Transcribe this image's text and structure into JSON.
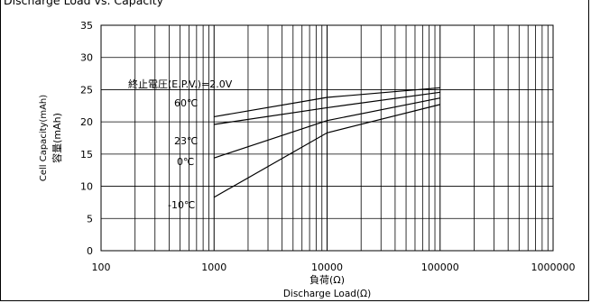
{
  "title": "Discharge Load vs. Capacity",
  "chart_data": {
    "type": "line",
    "title": "Discharge Load vs. Capacity",
    "xlabel_jp": "負荷(Ω)",
    "xlabel": "Discharge Load(Ω)",
    "ylabel": "Cell Capacity(mAh)",
    "ylabel_jp": "容量(mAh)",
    "xscale": "log",
    "xlim": [
      100,
      1000000
    ],
    "ylim": [
      0,
      35
    ],
    "x_ticks": [
      "100",
      "1000",
      "10000",
      "100000",
      "1000000"
    ],
    "y_ticks": [
      "0",
      "5",
      "10",
      "15",
      "20",
      "25",
      "30",
      "35"
    ],
    "grid": true,
    "annotation": "終止電圧(E.P.V.)=2.0V",
    "series": [
      {
        "name": "60℃",
        "x": [
          1000,
          10000,
          100000
        ],
        "y": [
          20.8,
          23.8,
          25.3
        ]
      },
      {
        "name": "23℃",
        "x": [
          1000,
          10000,
          100000
        ],
        "y": [
          19.6,
          22.2,
          24.6
        ]
      },
      {
        "name": "0℃",
        "x": [
          1000,
          10000,
          100000
        ],
        "y": [
          14.4,
          20.2,
          23.7
        ]
      },
      {
        "name": "-10℃",
        "x": [
          1000,
          10000,
          100000
        ],
        "y": [
          8.3,
          18.3,
          22.7
        ]
      }
    ]
  }
}
